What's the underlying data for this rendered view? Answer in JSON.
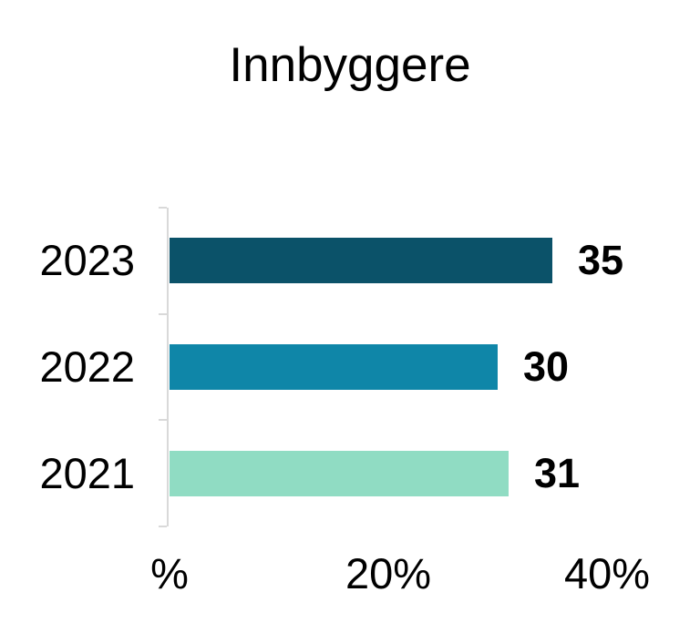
{
  "chart_data": {
    "type": "bar",
    "orientation": "horizontal",
    "title": "Innbyggere",
    "categories": [
      "2023",
      "2022",
      "2021"
    ],
    "values": [
      35,
      30,
      31
    ],
    "series": [
      {
        "name": "Innbyggere",
        "values": [
          35,
          30,
          31
        ]
      }
    ],
    "data_labels": [
      "35",
      "30",
      "31"
    ],
    "xlabel": "",
    "ylabel": "",
    "xlim": [
      0,
      40
    ],
    "x_ticks": [
      {
        "value": 0,
        "label": "%"
      },
      {
        "value": 20,
        "label": "20%"
      },
      {
        "value": 40,
        "label": "40%"
      }
    ],
    "grid": false,
    "legend_position": "none",
    "bar_colors": [
      "#0B5269",
      "#0F86A8",
      "#90DCC3"
    ],
    "axis_color": "#D9D9D9",
    "text_color": "#000000",
    "background_color": "#FFFFFF"
  }
}
